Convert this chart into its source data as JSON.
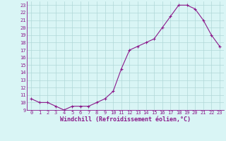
{
  "x_data": [
    0,
    1,
    2,
    3,
    4,
    5,
    6,
    7,
    8,
    9,
    10,
    11,
    12,
    13,
    14,
    15,
    16,
    17,
    18,
    19,
    20,
    21,
    22,
    23
  ],
  "y_data": [
    10.5,
    10.0,
    10.0,
    9.5,
    9.0,
    9.5,
    9.5,
    9.5,
    10.0,
    10.5,
    11.5,
    14.5,
    17.0,
    17.5,
    18.0,
    18.5,
    20.0,
    21.5,
    23.0,
    23.0,
    22.5,
    21.0,
    19.0,
    17.5
  ],
  "line_color": "#8b1a8b",
  "bg_color": "#d9f5f5",
  "grid_color": "#b0d8d8",
  "xlabel": "Windchill (Refroidissement éolien,°C)",
  "ylim": [
    9,
    23.5
  ],
  "xlim": [
    -0.5,
    23.5
  ],
  "yticks": [
    9,
    10,
    11,
    12,
    13,
    14,
    15,
    16,
    17,
    18,
    19,
    20,
    21,
    22,
    23
  ],
  "xticks": [
    0,
    1,
    2,
    3,
    4,
    5,
    6,
    7,
    8,
    9,
    10,
    11,
    12,
    13,
    14,
    15,
    16,
    17,
    18,
    19,
    20,
    21,
    22,
    23
  ],
  "tick_fontsize": 5,
  "xlabel_fontsize": 6,
  "marker_size": 2.5,
  "line_width": 0.8
}
